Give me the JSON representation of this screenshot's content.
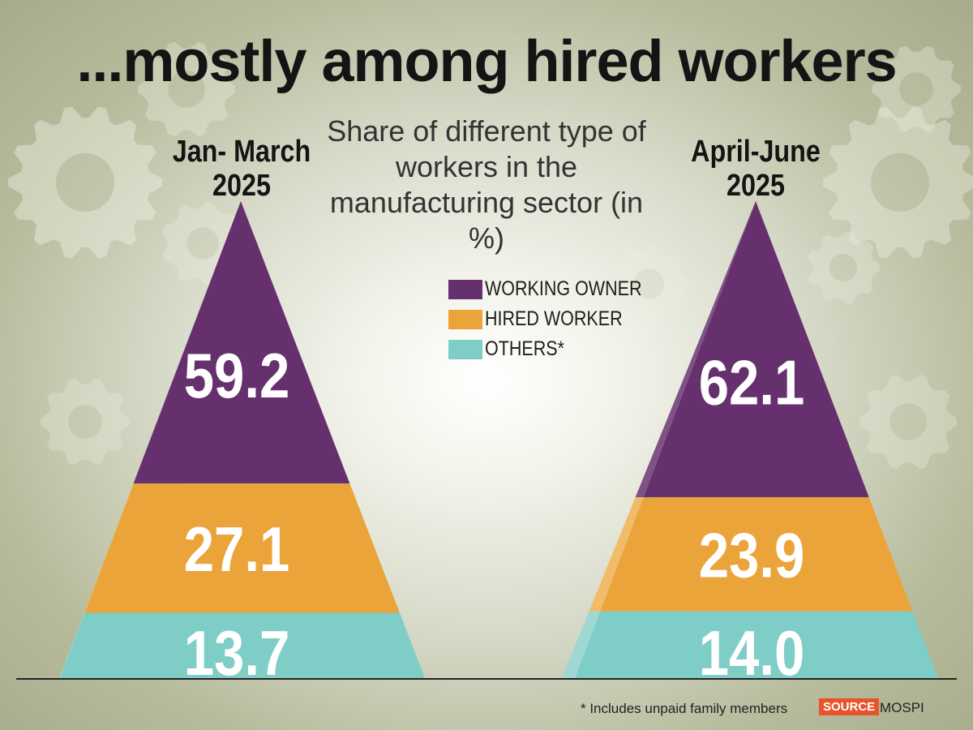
{
  "title": "...mostly among hired workers",
  "subtitle": "Share of different type of workers in the manufacturing sector (in %)",
  "footnote": "* Includes unpaid family members",
  "source": {
    "label": "SOURCE",
    "name": "MOSPI"
  },
  "colors": {
    "working_owner": "#66306e",
    "hired_worker": "#eba43a",
    "others": "#7fcdc7"
  },
  "chart_data": {
    "type": "bar",
    "subtype": "stacked pyramid",
    "title": "...mostly among hired workers",
    "subtitle": "Share of different type of workers in the manufacturing sector (in %)",
    "unit": "%",
    "categories": [
      "Jan- March 2025",
      "April-June 2025"
    ],
    "series": [
      {
        "name": "WORKING OWNER",
        "values": [
          59.2,
          62.1
        ],
        "labels": [
          "59.2",
          "62.1"
        ],
        "color": "#66306e"
      },
      {
        "name": "HIRED WORKER",
        "values": [
          27.1,
          23.9
        ],
        "labels": [
          "27.1",
          "23.9"
        ],
        "color": "#eba43a"
      },
      {
        "name": "OTHERS*",
        "values": [
          13.7,
          14.0
        ],
        "labels": [
          "13.7",
          "14.0"
        ],
        "color": "#7fcdc7"
      }
    ],
    "legend_position": "center"
  }
}
